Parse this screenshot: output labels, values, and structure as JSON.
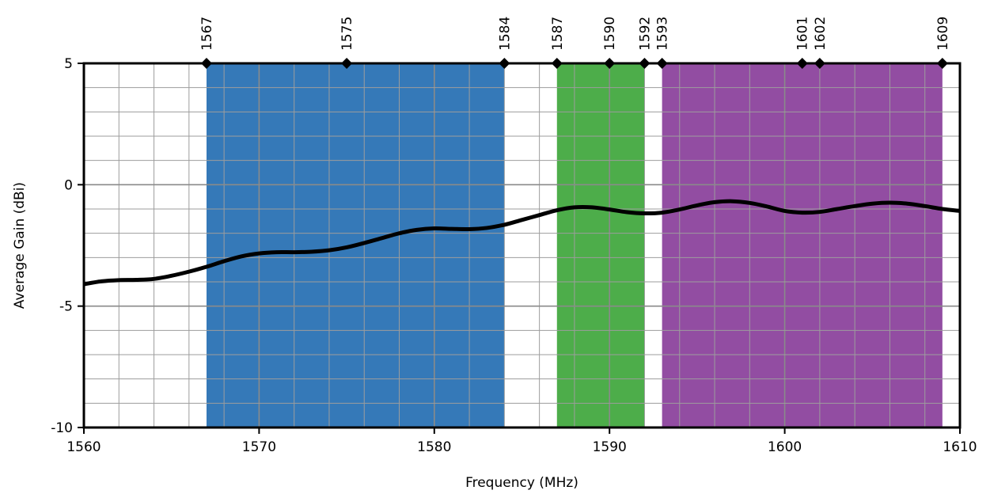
{
  "chart_data": {
    "type": "line",
    "xlabel": "Frequency (MHz)",
    "ylabel": "Average Gain (dBi)",
    "xlim": [
      1560,
      1610
    ],
    "ylim": [
      -10,
      5
    ],
    "x_ticks": [
      1560,
      1570,
      1580,
      1590,
      1600,
      1610
    ],
    "y_ticks": [
      -10,
      -5,
      0,
      5
    ],
    "x_tick_labels": [
      "1560",
      "1570",
      "1580",
      "1590",
      "1600",
      "1610"
    ],
    "y_tick_labels": [
      "-10",
      "-5",
      "0",
      "5"
    ],
    "grid": true,
    "bands": [
      {
        "start": 1567,
        "end": 1584,
        "color": "#3579b8"
      },
      {
        "start": 1587,
        "end": 1592,
        "color": "#4dad4a"
      },
      {
        "start": 1593,
        "end": 1609,
        "color": "#924da2"
      }
    ],
    "markers": [
      {
        "x": 1567,
        "label": "1567"
      },
      {
        "x": 1575,
        "label": "1575"
      },
      {
        "x": 1584,
        "label": "1584"
      },
      {
        "x": 1587,
        "label": "1587"
      },
      {
        "x": 1590,
        "label": "1590"
      },
      {
        "x": 1592,
        "label": "1592"
      },
      {
        "x": 1593,
        "label": "1593"
      },
      {
        "x": 1601,
        "label": "1601"
      },
      {
        "x": 1602,
        "label": "1602"
      },
      {
        "x": 1609,
        "label": "1609"
      }
    ],
    "series": [
      {
        "x": [
          1560,
          1561,
          1562,
          1563,
          1564,
          1565,
          1566,
          1567,
          1568,
          1569,
          1570,
          1571,
          1572,
          1573,
          1574,
          1575,
          1576,
          1577,
          1578,
          1579,
          1580,
          1581,
          1582,
          1583,
          1584,
          1585,
          1586,
          1587,
          1588,
          1589,
          1590,
          1591,
          1592,
          1593,
          1594,
          1595,
          1596,
          1597,
          1598,
          1599,
          1600,
          1601,
          1602,
          1603,
          1604,
          1605,
          1606,
          1607,
          1608,
          1609,
          1610
        ],
        "values": [
          -4.1,
          -3.98,
          -3.93,
          -3.92,
          -3.88,
          -3.75,
          -3.58,
          -3.38,
          -3.15,
          -2.95,
          -2.83,
          -2.78,
          -2.78,
          -2.76,
          -2.7,
          -2.58,
          -2.4,
          -2.2,
          -2.0,
          -1.86,
          -1.8,
          -1.82,
          -1.83,
          -1.78,
          -1.65,
          -1.45,
          -1.25,
          -1.05,
          -0.93,
          -0.93,
          -1.02,
          -1.13,
          -1.18,
          -1.15,
          -1.02,
          -0.85,
          -0.72,
          -0.68,
          -0.75,
          -0.9,
          -1.08,
          -1.15,
          -1.12,
          -1.0,
          -0.88,
          -0.78,
          -0.74,
          -0.78,
          -0.88,
          -1.0,
          -1.08
        ],
        "color": "#000000"
      }
    ]
  }
}
